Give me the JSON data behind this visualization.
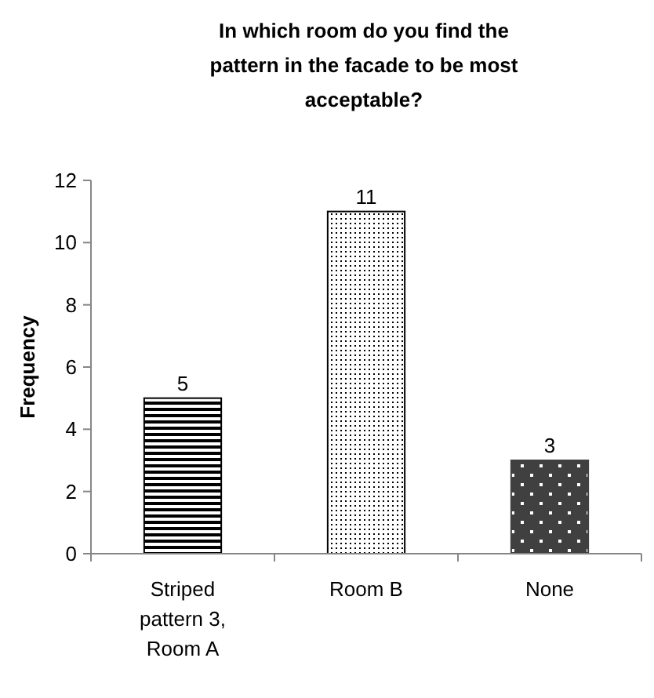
{
  "chart_data": {
    "type": "bar",
    "title": "In which room do you find the pattern in the facade to be most acceptable?",
    "ylabel": "Frequency",
    "categories": [
      "Striped pattern 3, Room A",
      "Room B",
      "None"
    ],
    "values": [
      5,
      11,
      3
    ],
    "colors": [
      "#000000",
      "#000000",
      "#404040"
    ],
    "ylim": [
      0,
      12
    ],
    "yticks": [
      0,
      2,
      4,
      6,
      8,
      10,
      12
    ],
    "data_labels": true,
    "grid": false
  }
}
